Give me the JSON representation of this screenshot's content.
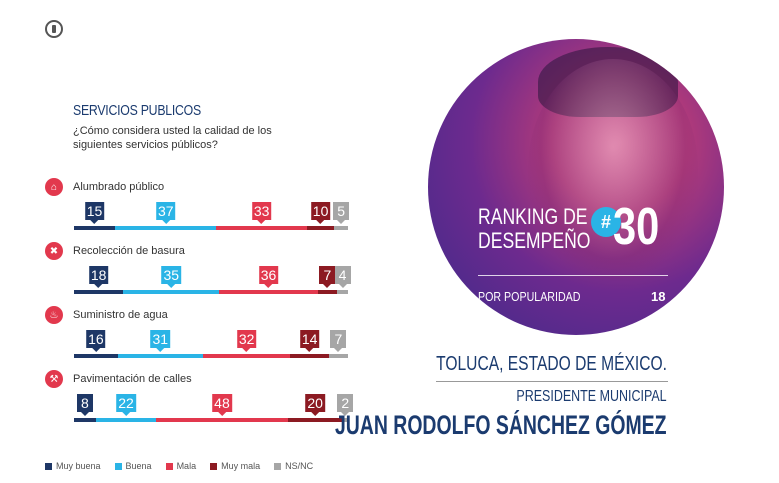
{
  "colors": {
    "muy_buena": "#1e3766",
    "buena": "#2ab4e6",
    "mala": "#e2384d",
    "muy_mala": "#8c1a22",
    "nsnc": "#a6a6a6",
    "navy": "#1b3b6f"
  },
  "logo_icon": "pen-nib-icon",
  "chart_data": {
    "type": "bar",
    "title": "SERVICIOS PUBLICOS",
    "subtitle": "¿Cómo considera usted la calidad de los siguientes servicios públicos?",
    "categories": [
      "Alumbrado público",
      "Recolección de basura",
      "Suministro de agua",
      "Pavimentación de calles"
    ],
    "category_icons": [
      "lamp-icon",
      "trash-icon",
      "faucet-icon",
      "road-work-icon"
    ],
    "series": [
      {
        "name": "Muy buena",
        "values": [
          15,
          18,
          16,
          8
        ]
      },
      {
        "name": "Buena",
        "values": [
          37,
          35,
          31,
          22
        ]
      },
      {
        "name": "Mala",
        "values": [
          33,
          36,
          32,
          48
        ]
      },
      {
        "name": "Muy mala",
        "values": [
          10,
          7,
          14,
          20
        ]
      },
      {
        "name": "NS/NC",
        "values": [
          5,
          4,
          7,
          2
        ]
      }
    ],
    "stacked": true,
    "legend_position": "bottom-left"
  },
  "ranking": {
    "line1": "RANKING DE",
    "line2": "DESEMPEÑO",
    "hash": "#",
    "number": "30",
    "popularity_label": "POR POPULARIDAD",
    "popularity_value": "18"
  },
  "profile": {
    "city": "TOLUCA, ESTADO DE MÉXICO.",
    "role": "PRESIDENTE MUNICIPAL",
    "name": "JUAN RODOLFO SÁNCHEZ GÓMEZ"
  }
}
